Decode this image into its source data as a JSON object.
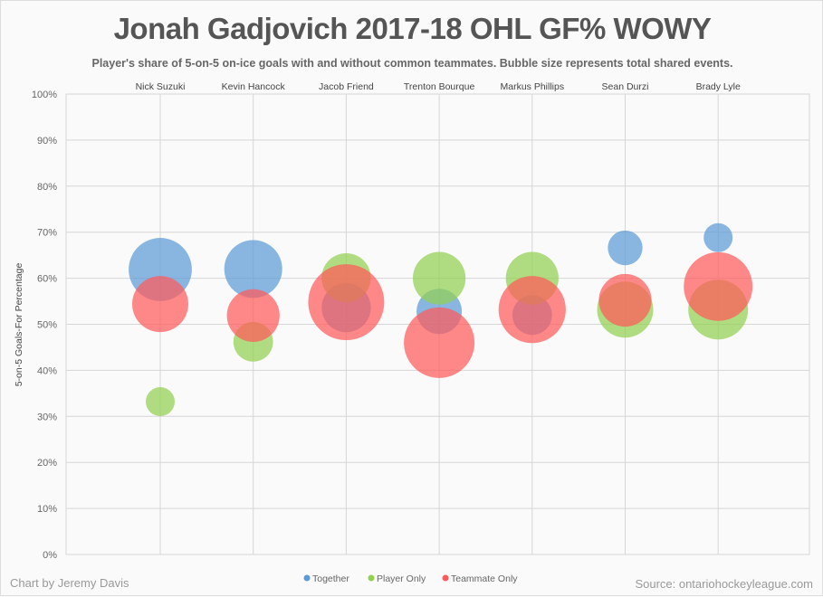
{
  "chart_data": {
    "type": "bubble",
    "title": "Jonah Gadjovich 2017-18 OHL GF% WOWY",
    "subtitle": "Player's share of 5-on-5 on-ice goals with and without common teammates. Bubble size represents total shared events.",
    "ylabel": "5-on-5 Goals-For Percentage",
    "ylim": [
      0,
      100
    ],
    "yticks": [
      "0%",
      "10%",
      "20%",
      "30%",
      "40%",
      "50%",
      "60%",
      "70%",
      "80%",
      "90%",
      "100%"
    ],
    "categories": [
      "Nick Suzuki",
      "Kevin Hancock",
      "Jacob Friend",
      "Trenton Bourque",
      "Markus Phillips",
      "Sean Durzi",
      "Brady Lyle"
    ],
    "legend_position": "bottom",
    "series": [
      {
        "name": "Together",
        "color": "#5b9bd5",
        "values": [
          61.9,
          62.0,
          53.6,
          52.8,
          52.0,
          66.6,
          68.8
        ],
        "sizes": [
          76,
          64,
          46,
          39,
          30,
          23,
          16
        ]
      },
      {
        "name": "Player Only",
        "color": "#92d050",
        "values": [
          33.2,
          46.2,
          60.1,
          60.0,
          60.0,
          53.2,
          53.2
        ],
        "sizes": [
          16,
          30,
          46,
          53,
          53,
          60,
          68
        ]
      },
      {
        "name": "Teammate Only",
        "color": "#ff5a5a",
        "values": [
          54.4,
          51.9,
          54.8,
          46.0,
          53.2,
          55.2,
          58.2
        ],
        "sizes": [
          60,
          53,
          110,
          95,
          86,
          53,
          90
        ]
      }
    ]
  },
  "footer": {
    "credit": "Chart by Jeremy Davis",
    "source": "Source: ontariohockeyleague.com"
  }
}
